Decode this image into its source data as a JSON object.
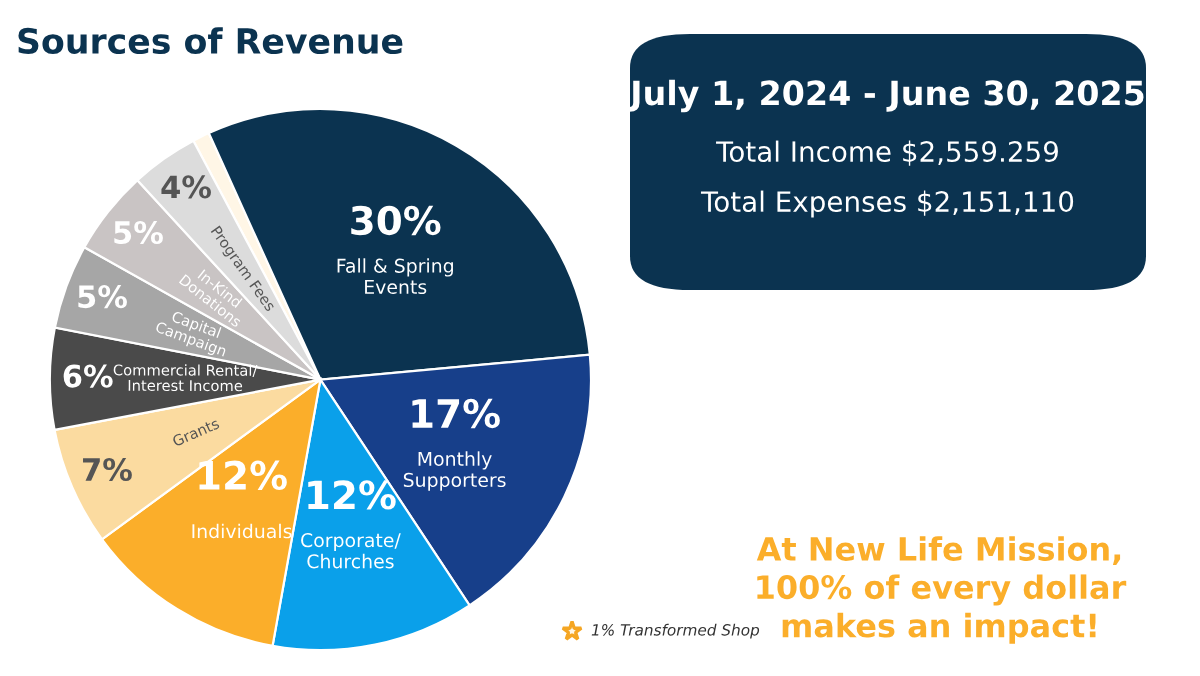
{
  "chart_data": {
    "type": "pie",
    "title": "Sources of Revenue",
    "categories": [
      "Transformed Shop",
      "Fall & Spring\nEvents",
      "Monthly\nSupporters",
      "Corporate/\nChurches",
      "Individuals",
      "Grants",
      "Commercial Rental/\nInterest Income",
      "Capital\nCampaign",
      "In-Kind\nDonations",
      "Program Fees"
    ],
    "values": [
      1,
      30,
      17,
      12,
      12,
      7,
      6,
      5,
      5,
      4
    ],
    "colors": [
      "#fff6e6",
      "#0b3350",
      "#173f8a",
      "#0aa0ea",
      "#fbae2a",
      "#fbdba0",
      "#4a4a4a",
      "#a6a6a6",
      "#c9c4c4",
      "#dcdcdc"
    ],
    "value_labels": [
      "1%",
      "30%",
      "17%",
      "12%",
      "12%",
      "7%",
      "6%",
      "5%",
      "5%",
      "4%"
    ],
    "annotations": [
      "July 1, 2024 - June 30, 2025",
      "Total Income $2,559.259",
      "Total Expenses $2,151,110",
      "At New Life Mission,\n100% of every dollar\nmakes an impact!"
    ]
  }
}
